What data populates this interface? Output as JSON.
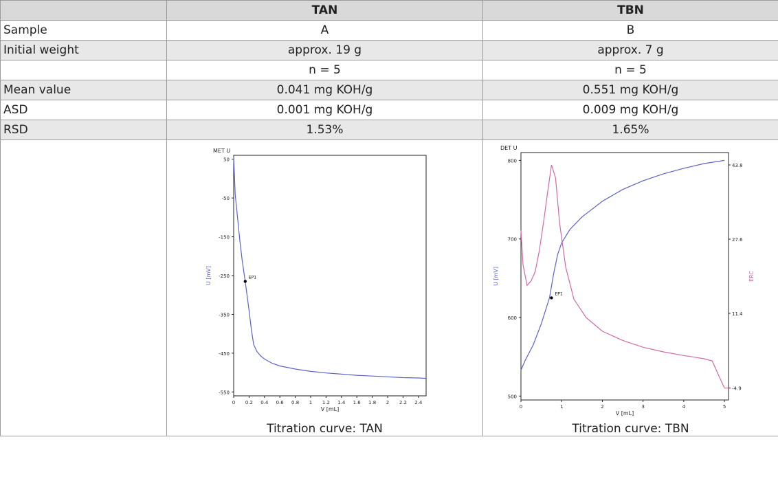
{
  "table": {
    "headers": [
      "",
      "TAN",
      "TBN"
    ],
    "rows": [
      {
        "label": "Sample",
        "tan": "A",
        "tbn": "B"
      },
      {
        "label": "Initial weight",
        "tan": "approx. 19 g",
        "tbn": "approx. 7 g"
      },
      {
        "label": "",
        "tan": "n = 5",
        "tbn": "n = 5"
      },
      {
        "label": "Mean value",
        "tan": "0.041 mg KOH/g",
        "tbn": "0.551 mg KOH/g"
      },
      {
        "label": "ASD",
        "tan": "0.001 mg KOH/g",
        "tbn": "0.009 mg KOH/g"
      },
      {
        "label": "RSD",
        "tan": "1.53%",
        "tbn": "1.65%"
      }
    ]
  },
  "captions": {
    "tan": "Titration curve: TAN",
    "tbn": "Titration curve: TBN"
  },
  "colors": {
    "curve": "#5b62c9",
    "erc": "#d069a8",
    "axis": "#222222",
    "header_bg": "#d9d9d9",
    "shade_bg": "#e8e8e8"
  },
  "chart_data": [
    {
      "type": "line",
      "corner_label": "MET U",
      "xlabel": "V [mL]",
      "ylabel": "U [mV]",
      "xlim": [
        0,
        2.5
      ],
      "ylim": [
        -560,
        60
      ],
      "xticks": [
        0,
        0.2,
        0.4,
        0.6,
        0.8,
        1,
        1.2,
        1.4,
        1.6,
        1.8,
        2,
        2.2,
        2.4
      ],
      "xtick_labels": [
        "0",
        "0.2",
        "0.4",
        "0.6",
        "0.8",
        "1",
        "1.2",
        "1.4",
        "1.6",
        "1.8",
        "2",
        "2.2",
        "2.4"
      ],
      "yticks": [
        50,
        -50,
        -150,
        -250,
        -350,
        -450,
        -550
      ],
      "series": [
        {
          "x": [
            0,
            0.02,
            0.05,
            0.08,
            0.11,
            0.15,
            0.2,
            0.23,
            0.26,
            0.3,
            0.35,
            0.4,
            0.5,
            0.6,
            0.8,
            1.0,
            1.2,
            1.4,
            1.6,
            1.8,
            2.0,
            2.2,
            2.4,
            2.5
          ],
          "y": [
            55,
            -40,
            -100,
            -160,
            -210,
            -265,
            -340,
            -390,
            -428,
            -445,
            -457,
            -465,
            -476,
            -483,
            -491,
            -497,
            -501,
            -504,
            -507,
            -509,
            -511,
            -513,
            -514,
            -515
          ]
        }
      ],
      "annotations": [
        {
          "label": "EP1",
          "x": 0.15,
          "y": -265
        }
      ]
    },
    {
      "type": "line",
      "corner_label": "DET U",
      "xlabel": "V [mL]",
      "ylabel": "U [mV]",
      "y2label": "ERC",
      "xlim": [
        0,
        5.1
      ],
      "ylim": [
        495,
        810
      ],
      "y2lim": [
        -7.5,
        46.5
      ],
      "xticks": [
        0,
        1,
        2,
        3,
        4,
        5
      ],
      "xtick_labels": [
        "0",
        "1",
        "2",
        "3",
        "4",
        "5"
      ],
      "yticks": [
        800,
        700,
        600,
        500
      ],
      "y2ticks": [
        43.8,
        27.6,
        11.4,
        -4.9
      ],
      "series": [
        {
          "name": "U",
          "axis": "left",
          "x": [
            0,
            0.1,
            0.3,
            0.5,
            0.7,
            0.8,
            0.9,
            1.0,
            1.2,
            1.5,
            2.0,
            2.5,
            3.0,
            3.5,
            4.0,
            4.5,
            5.0
          ],
          "y": [
            533,
            545,
            565,
            592,
            625,
            655,
            680,
            695,
            712,
            728,
            748,
            763,
            774,
            783,
            790,
            796,
            800
          ]
        },
        {
          "name": "ERC",
          "axis": "right",
          "x": [
            0,
            0.05,
            0.15,
            0.25,
            0.35,
            0.45,
            0.55,
            0.65,
            0.75,
            0.85,
            0.95,
            1.1,
            1.3,
            1.6,
            2.0,
            2.5,
            3.0,
            3.5,
            4.0,
            4.5,
            4.7,
            4.85,
            5.0,
            5.1
          ],
          "y": [
            29.5,
            22,
            17.5,
            18.5,
            20.5,
            25,
            31,
            37.5,
            43.8,
            41,
            31,
            21.5,
            14.5,
            10.5,
            7.5,
            5.5,
            4.0,
            3.0,
            2.2,
            1.5,
            1.0,
            -2,
            -4.9,
            -4.9
          ]
        }
      ],
      "annotations": [
        {
          "label": "EP1",
          "x": 0.75,
          "y": 625
        }
      ]
    }
  ]
}
